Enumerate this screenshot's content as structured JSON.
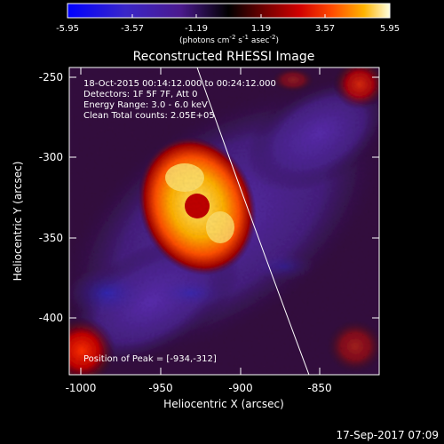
{
  "colorbar": {
    "ticks": [
      "-5.95",
      "-3.57",
      "-1.19",
      "1.19",
      "3.57",
      "5.95"
    ],
    "units_prefix": "(photons cm",
    "units_exp1": "-2",
    "units_mid": " s",
    "units_exp2": "-1",
    "units_mid2": " asec",
    "units_exp3": "-2",
    "units_suffix": ")"
  },
  "image": {
    "title": "Reconstructed RHESSI Image",
    "info_lines": [
      "18-Oct-2015 00:14:12.000 to 00:24:12.000",
      "Detectors: 1F 5F 7F, Att 0",
      "Energy Range: 3.0 - 6.0 keV",
      "Clean     Total counts: 2.05E+05"
    ],
    "peak_label": "Position of Peak = [-934,-312]",
    "timestamp": "17-Sep-2017 07:09"
  },
  "axes": {
    "xlabel": "Heliocentric X (arcsec)",
    "ylabel": "Heliocentric Y (arcsec)",
    "x_ticks": [
      "-1000",
      "-950",
      "-900",
      "-850"
    ],
    "y_ticks": [
      "-250",
      "-300",
      "-350",
      "-400"
    ]
  },
  "colors": {
    "background": "#000000",
    "colormap_negative": [
      "#0000ff",
      "#3020c0",
      "#4a1a9a",
      "#2a0a4a"
    ],
    "colormap_positive": [
      "#300010",
      "#a00000",
      "#ff4000",
      "#ffb000",
      "#ffff90"
    ]
  }
}
